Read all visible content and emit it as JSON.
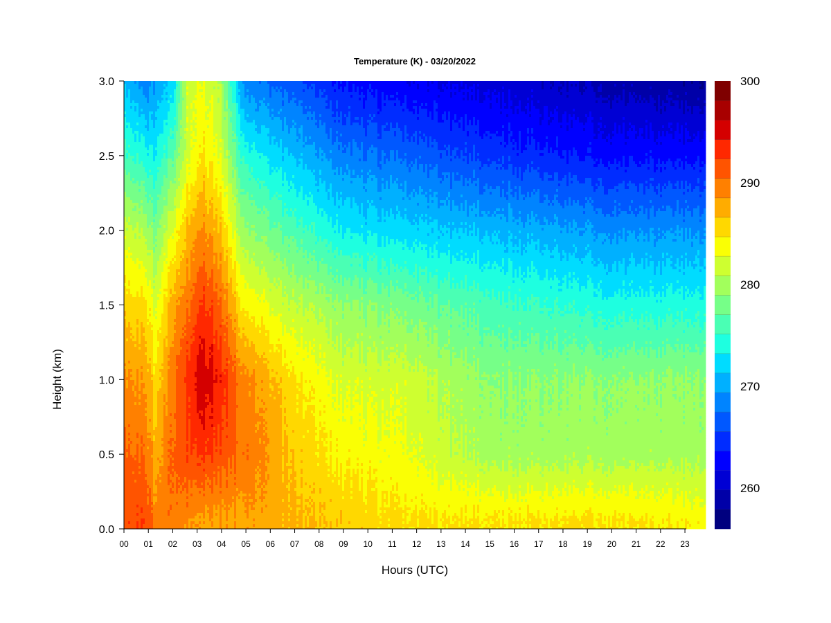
{
  "chart_data": {
    "type": "heatmap",
    "title": "Temperature (K) - 03/20/2022",
    "xlabel": "Hours (UTC)",
    "ylabel": "Height (km)",
    "x_ticks": [
      "00",
      "01",
      "02",
      "03",
      "04",
      "05",
      "06",
      "07",
      "08",
      "09",
      "10",
      "11",
      "12",
      "13",
      "14",
      "15",
      "16",
      "17",
      "18",
      "19",
      "20",
      "21",
      "22",
      "23"
    ],
    "y_ticks": [
      "0.0",
      "0.5",
      "1.0",
      "1.5",
      "2.0",
      "2.5",
      "3.0"
    ],
    "xlim": [
      0,
      23.85
    ],
    "ylim": [
      0,
      3.0
    ],
    "colorbar": {
      "ticks": [
        "260",
        "270",
        "280",
        "290",
        "300"
      ],
      "range": [
        256,
        300
      ],
      "levels": 22,
      "colors": [
        "#00007f",
        "#0000a8",
        "#0000d4",
        "#0000ff",
        "#002cff",
        "#0058ff",
        "#0084ff",
        "#00b0ff",
        "#00dcff",
        "#1effe0",
        "#4affb4",
        "#76ff88",
        "#a2ff5c",
        "#ceff30",
        "#faff04",
        "#ffd800",
        "#ffac00",
        "#ff8000",
        "#ff5400",
        "#ff2800",
        "#d40000",
        "#a80000",
        "#7f0000"
      ]
    },
    "grid": false,
    "description_of_field": "Temperature by height and hour",
    "z_profile": {
      "heights_km": [
        0.0,
        0.5,
        1.0,
        1.5,
        2.0,
        2.5,
        3.0
      ],
      "hour_00": [
        291,
        290,
        289,
        286,
        282,
        276,
        271
      ],
      "hour_03": [
        287,
        293,
        296,
        293,
        289,
        285,
        283
      ],
      "hour_06": [
        286,
        288,
        286,
        281,
        276,
        272,
        267
      ],
      "hour_10": [
        284,
        283,
        282,
        278,
        272,
        267,
        262
      ],
      "hour_15": [
        284,
        280,
        279,
        276,
        271,
        265,
        261
      ],
      "hour_20": [
        284,
        280,
        279,
        274,
        269,
        263,
        259
      ],
      "hour_23": [
        284,
        280,
        279,
        274,
        269,
        263,
        258
      ]
    }
  }
}
